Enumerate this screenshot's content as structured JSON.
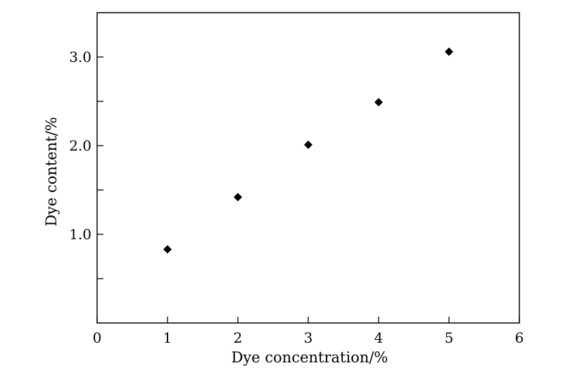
{
  "chart_data": {
    "type": "scatter",
    "title": "",
    "xlabel": "Dye concentration/%",
    "ylabel": "Dye content/%",
    "xlim": [
      0,
      6
    ],
    "ylim": [
      0,
      3.5
    ],
    "x_ticks": [
      0,
      1,
      2,
      3,
      4,
      5,
      6
    ],
    "x_tick_labels": [
      "0",
      "1",
      "2",
      "3",
      "4",
      "5",
      "6"
    ],
    "y_ticks": [
      1.0,
      2.0,
      3.0
    ],
    "y_tick_labels": [
      "1.0",
      "2.0",
      "3.0"
    ],
    "y_minor_ticks": [
      0.5,
      1.5,
      2.5
    ],
    "grid": false,
    "marker": "diamond",
    "marker_color": "#000000",
    "series": [
      {
        "x": [
          1,
          2,
          3,
          4,
          5
        ],
        "y": [
          0.83,
          1.42,
          2.01,
          2.49,
          3.06
        ]
      }
    ]
  }
}
